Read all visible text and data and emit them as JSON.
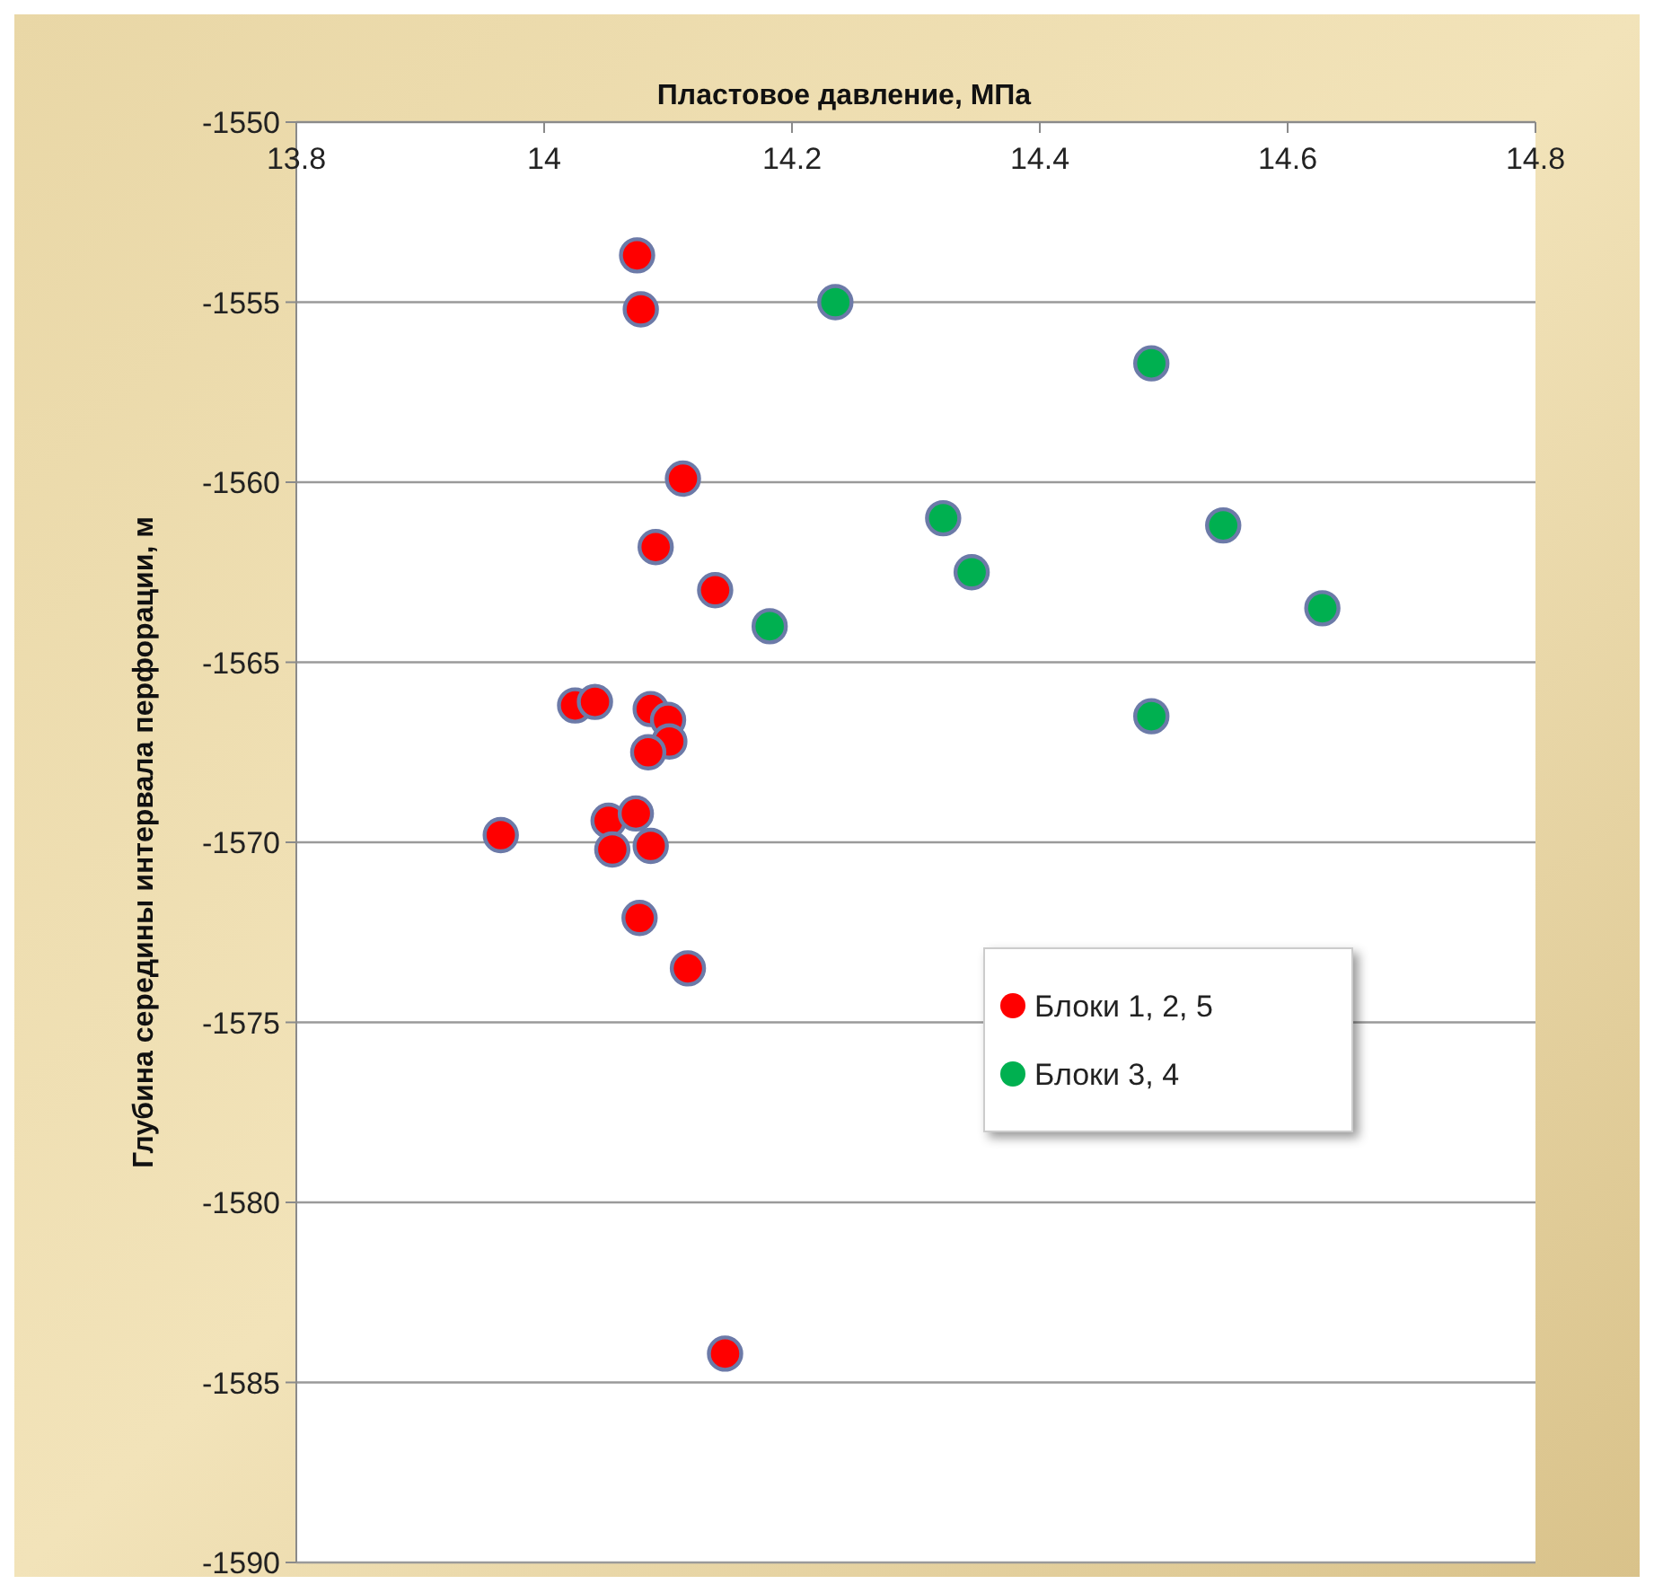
{
  "chart_data": {
    "type": "scatter",
    "xlabel": "Пластовое давление, МПа",
    "ylabel": "Глубина середины интервала перфорации, м",
    "xlim": [
      13.8,
      14.8
    ],
    "xticks": [
      13.8,
      14,
      14.2,
      14.4,
      14.6,
      14.8
    ],
    "ylim": [
      -1590,
      -1550
    ],
    "yticks": [
      -1590,
      -1585,
      -1580,
      -1575,
      -1570,
      -1565,
      -1560,
      -1555,
      -1550
    ],
    "grid": "y",
    "legend": "right",
    "marker": "circle",
    "series": [
      {
        "name": "Блоки 1, 2, 5",
        "color": "#ff0000",
        "x": [
          14.075,
          14.078,
          14.112,
          14.09,
          14.138,
          14.025,
          14.041,
          14.086,
          14.1,
          14.101,
          14.084,
          13.965,
          14.052,
          14.074,
          14.055,
          14.086,
          14.077,
          14.116,
          14.146
        ],
        "values": [
          -1553.7,
          -1555.2,
          -1559.9,
          -1561.8,
          -1563,
          -1566.2,
          -1566.1,
          -1566.3,
          -1566.6,
          -1567.2,
          -1567.5,
          -1569.8,
          -1569.4,
          -1569.2,
          -1570.2,
          -1570.1,
          -1572.1,
          -1573.5,
          -1584.2
        ]
      },
      {
        "name": "Блоки 3, 4",
        "color": "#00b050",
        "x": [
          14.235,
          14.49,
          14.322,
          14.345,
          14.548,
          14.182,
          14.49,
          14.628
        ],
        "values": [
          -1555,
          -1556.7,
          -1561,
          -1562.5,
          -1561.2,
          -1564,
          -1566.5,
          -1563.5
        ]
      }
    ]
  }
}
